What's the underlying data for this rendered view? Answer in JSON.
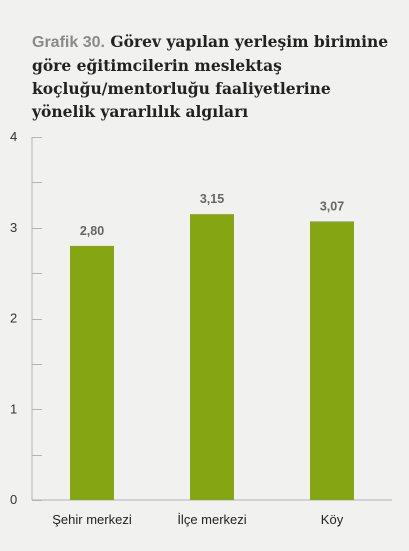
{
  "figure": {
    "prefix": "Grafik 30.",
    "title": "Görev yapılan yerleşim birimine göre eğitimcilerin meslektaş koçluğu/mentorluğu faaliyetlerine yönelik yararlılık algıları"
  },
  "chart_data": {
    "type": "bar",
    "categories": [
      "Şehir merkezi",
      "İlçe merkezi",
      "Köy"
    ],
    "values": [
      2.8,
      3.15,
      3.07
    ],
    "value_labels": [
      "2,80",
      "3,15",
      "3,07"
    ],
    "y_ticks": [
      "0",
      "1",
      "2",
      "3",
      "4"
    ],
    "ylim": [
      0,
      4
    ],
    "grid": false,
    "bar_color": "#86a512",
    "axis_color": "#b4b4b4",
    "label_color": "#666666"
  }
}
